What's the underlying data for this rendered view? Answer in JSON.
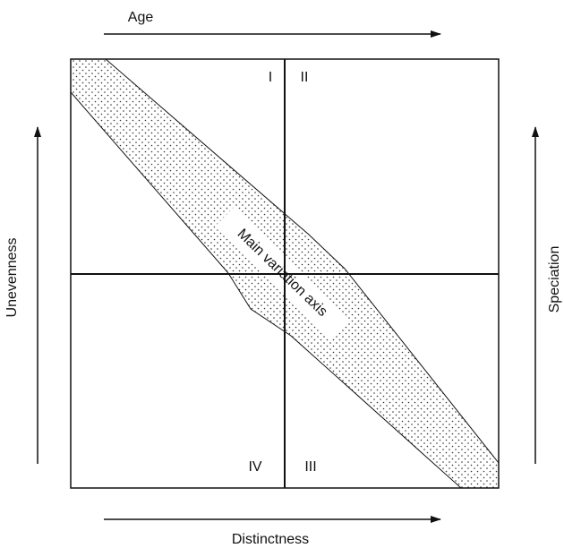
{
  "axes": {
    "top": "Age",
    "bottom": "Distinctness",
    "left": "Unevenness",
    "right": "Speciation"
  },
  "quadrants": [
    "I",
    "II",
    "III",
    "IV"
  ],
  "band_label": "Main variation axis"
}
